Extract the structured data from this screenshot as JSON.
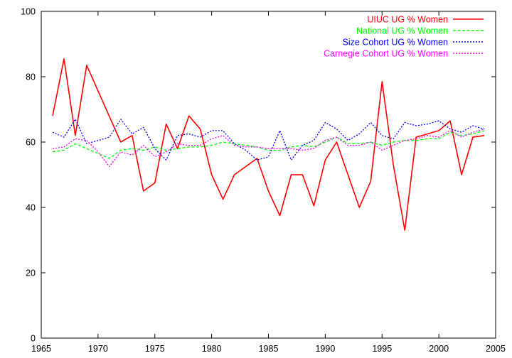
{
  "chart_data": {
    "type": "line",
    "title": "",
    "xlabel": "",
    "ylabel": "",
    "xlim": [
      1965,
      2005
    ],
    "ylim": [
      0,
      100
    ],
    "xticks": [
      1965,
      1970,
      1975,
      1980,
      1985,
      1990,
      1995,
      2000,
      2005
    ],
    "yticks": [
      0,
      20,
      40,
      60,
      80,
      100
    ],
    "grid": false,
    "legend_position": "top-right",
    "series": [
      {
        "name": "UIUC UG % Women",
        "color": "#ff0000",
        "dash": "solid",
        "x": [
          1966,
          1967,
          1968,
          1969,
          1972,
          1973,
          1974,
          1975,
          1976,
          1977,
          1978,
          1979,
          1980,
          1981,
          1982,
          1984,
          1985,
          1986,
          1987,
          1988,
          1989,
          1990,
          1991,
          1992,
          1993,
          1994,
          1995,
          1996,
          1997,
          1998,
          2000,
          2001,
          2002,
          2003,
          2004
        ],
        "values": [
          68,
          85.5,
          62,
          83.5,
          60,
          62,
          45,
          47.5,
          65.5,
          58,
          68,
          64,
          50,
          42.5,
          50,
          55,
          45,
          37.5,
          50,
          50,
          40.5,
          54.5,
          60,
          50,
          40,
          48,
          78.5,
          53,
          33,
          61.5,
          63.5,
          66.5,
          50,
          61.5,
          62
        ]
      },
      {
        "name": "National UG % Women",
        "color": "#00ff00",
        "dash": "dashed",
        "x": [
          1966,
          1967,
          1968,
          1969,
          1970,
          1971,
          1972,
          1973,
          1974,
          1975,
          1976,
          1977,
          1978,
          1979,
          1980,
          1981,
          1982,
          1983,
          1984,
          1985,
          1986,
          1987,
          1988,
          1989,
          1990,
          1991,
          1992,
          1993,
          1994,
          1995,
          1996,
          1997,
          1998,
          1999,
          2000,
          2001,
          2002,
          2003,
          2004
        ],
        "values": [
          57,
          57.5,
          59.5,
          58,
          56.5,
          55,
          57.5,
          58,
          57.5,
          58.5,
          57.5,
          58,
          58.5,
          58.5,
          59,
          60,
          59.5,
          59,
          58.5,
          57.5,
          57.5,
          58.5,
          59,
          58.5,
          60,
          61.5,
          59.5,
          59.5,
          60,
          59,
          60,
          60.5,
          60.5,
          61,
          61,
          63,
          62,
          62.5,
          63.5
        ]
      },
      {
        "name": "Size Cohort UG % Women",
        "color": "#0000ff",
        "dash": "dotted",
        "x": [
          1966,
          1967,
          1968,
          1969,
          1970,
          1971,
          1972,
          1973,
          1974,
          1975,
          1976,
          1977,
          1978,
          1979,
          1980,
          1981,
          1982,
          1983,
          1984,
          1985,
          1986,
          1987,
          1988,
          1989,
          1990,
          1991,
          1992,
          1993,
          1994,
          1995,
          1996,
          1997,
          1998,
          1999,
          2000,
          2001,
          2002,
          2003,
          2004
        ],
        "values": [
          63,
          61.5,
          67,
          59.5,
          60.5,
          61.5,
          67,
          62.5,
          64.5,
          58,
          54.5,
          62,
          62.5,
          61.5,
          63.5,
          63.5,
          59.5,
          57.5,
          54.5,
          55.5,
          63.5,
          54.5,
          59,
          60.5,
          66,
          64,
          60.5,
          62.5,
          66,
          62,
          61,
          66,
          65,
          65.5,
          66.5,
          64,
          63,
          65,
          64
        ]
      },
      {
        "name": "Carnegie Cohort UG % Women",
        "color": "#ff00ff",
        "dash": "dotted",
        "x": [
          1966,
          1967,
          1968,
          1969,
          1970,
          1971,
          1972,
          1973,
          1974,
          1975,
          1976,
          1977,
          1978,
          1979,
          1980,
          1981,
          1982,
          1983,
          1984,
          1985,
          1986,
          1987,
          1988,
          1989,
          1990,
          1991,
          1992,
          1993,
          1994,
          1995,
          1996,
          1997,
          1998,
          1999,
          2000,
          2001,
          2002,
          2003,
          2004
        ],
        "values": [
          58,
          58.5,
          61,
          60.5,
          57,
          52.5,
          57,
          56,
          59,
          55.5,
          57,
          59.5,
          59,
          59,
          61,
          62,
          59,
          58.5,
          58.5,
          58,
          58,
          58,
          57.5,
          58,
          60.5,
          61.5,
          59,
          59,
          60,
          57.5,
          59,
          60.5,
          61,
          62,
          61.5,
          63.5,
          61.5,
          63,
          64
        ]
      }
    ]
  }
}
